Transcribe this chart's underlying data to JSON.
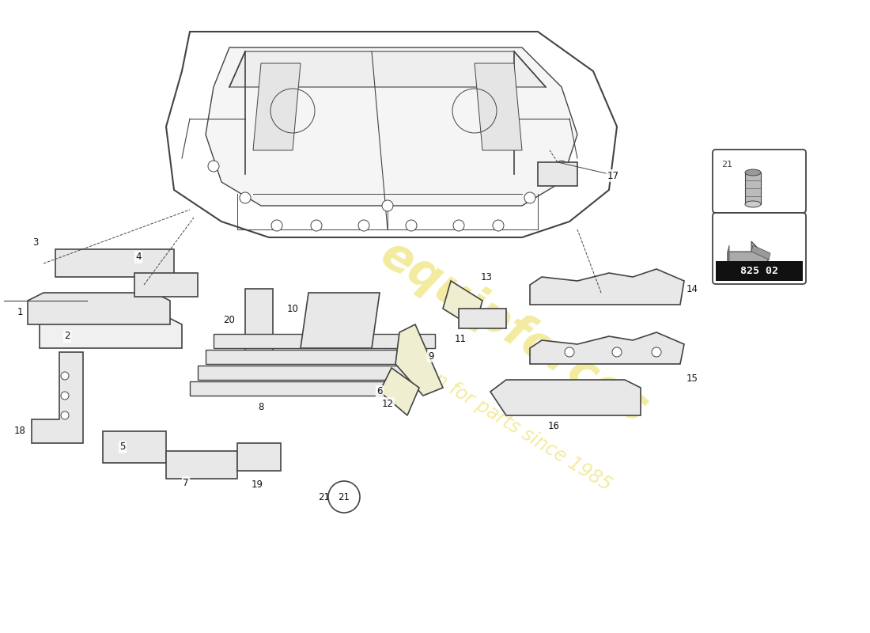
{
  "bg_color": "#ffffff",
  "part_number_box": "825 02",
  "watermark_color": "#e8d840",
  "line_color": "#444444",
  "part_fill": "#e8e8e8",
  "part_fill_yellow": "#f0eed0"
}
